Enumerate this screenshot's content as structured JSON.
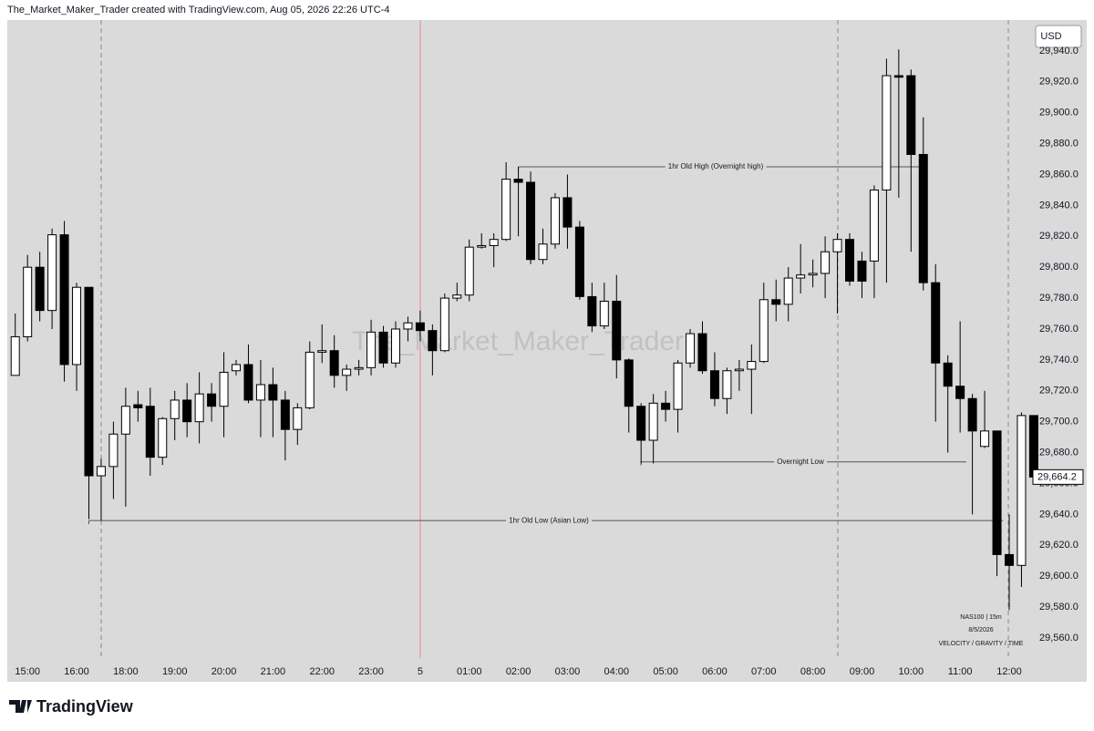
{
  "chart_data": {
    "type": "candlestick",
    "header": "The_Market_Maker_Trader created with TradingView.com, Aug 05, 2026 22:26 UTC-4",
    "watermark": "The_Market_Maker_Trader",
    "currency": "USD",
    "brand": "TradingView",
    "symbol_info": [
      "NAS100  |  15m",
      "8/5/2026",
      "VELOCITY / GRAVITY / TIME"
    ],
    "categories": [
      null,
      "15:00",
      null,
      null,
      null,
      "16:00",
      null,
      null,
      null,
      "18:00",
      null,
      null,
      null,
      "19:00",
      null,
      null,
      null,
      "20:00",
      null,
      null,
      null,
      "21:00",
      null,
      null,
      null,
      "22:00",
      null,
      null,
      null,
      "23:00",
      null,
      null,
      null,
      "5",
      null,
      null,
      null,
      "01:00",
      null,
      null,
      null,
      "02:00",
      null,
      null,
      null,
      "03:00",
      null,
      null,
      null,
      "04:00",
      null,
      null,
      null,
      "05:00",
      null,
      null,
      null,
      "06:00",
      null,
      null,
      null,
      "07:00",
      null,
      null,
      null,
      "08:00",
      null,
      null,
      null,
      "09:00",
      null,
      null,
      null,
      "10:00",
      null,
      null,
      null,
      "11:00",
      null,
      null,
      null,
      "12:00",
      null,
      null
    ],
    "open": [
      29730,
      29755,
      29800,
      29772,
      29821,
      29737,
      29787,
      29665,
      29671,
      29692,
      29711,
      29710,
      29677,
      29702,
      29714,
      29700,
      29718,
      29710,
      29733,
      29737,
      29714,
      29724,
      29714,
      29695,
      29709,
      29745,
      29746,
      29730,
      29734,
      29735,
      29758,
      29738,
      29760,
      29764,
      29759,
      29746,
      29780,
      29782,
      29813,
      29814,
      29818,
      29857,
      29855,
      29805,
      29815,
      29845,
      29826,
      29781,
      29762,
      29778,
      29740,
      29710,
      29688,
      29712,
      29708,
      29738,
      29757,
      29733,
      29715,
      29733,
      29734,
      29739,
      29779,
      29776,
      29793,
      29795,
      29796,
      29810,
      29818,
      29804,
      29804,
      29850,
      29924,
      29924,
      29873,
      29790,
      29738,
      29723,
      29715,
      29684,
      29694,
      29614,
      29607,
      29704
    ],
    "high": [
      29770,
      29808,
      29810,
      29825,
      29830,
      29790,
      29787,
      29676,
      29700,
      29722,
      29720,
      29722,
      29703,
      29720,
      29725,
      29732,
      29725,
      29745,
      29740,
      29750,
      29740,
      29735,
      29720,
      29712,
      29752,
      29763,
      29756,
      29737,
      29740,
      29766,
      29762,
      29765,
      29768,
      29772,
      29763,
      29783,
      29790,
      29818,
      29822,
      29822,
      29868,
      29865,
      29862,
      29825,
      29848,
      29860,
      29830,
      29790,
      29790,
      29795,
      29741,
      29712,
      29718,
      29720,
      29740,
      29760,
      29765,
      29745,
      29735,
      29740,
      29750,
      29790,
      29792,
      29800,
      29815,
      29805,
      29820,
      29822,
      29822,
      29810,
      29853,
      29935,
      29941,
      29928,
      29897,
      29802,
      29743,
      29765,
      29718,
      29720,
      29694,
      29640,
      29706,
      29704
    ],
    "low": [
      29730,
      29752,
      29765,
      29760,
      29726,
      29720,
      29637,
      29636,
      29650,
      29645,
      29700,
      29665,
      29672,
      29688,
      29690,
      29686,
      29700,
      29690,
      29730,
      29712,
      29690,
      29690,
      29675,
      29685,
      29708,
      29738,
      29722,
      29720,
      29730,
      29730,
      29735,
      29735,
      29752,
      29752,
      29730,
      29745,
      29778,
      29778,
      29812,
      29800,
      29817,
      29820,
      29802,
      29802,
      29812,
      29812,
      29779,
      29758,
      29760,
      29728,
      29693,
      29673,
      29673,
      29700,
      29693,
      29735,
      29731,
      29710,
      29705,
      29720,
      29705,
      29738,
      29765,
      29765,
      29783,
      29787,
      29780,
      29770,
      29788,
      29780,
      29780,
      29790,
      29845,
      29810,
      29785,
      29700,
      29680,
      29693,
      29640,
      29683,
      29600,
      29578,
      29593,
      29660
    ],
    "close": [
      29755,
      29800,
      29772,
      29821,
      29737,
      29787,
      29665,
      29671,
      29692,
      29710,
      29709,
      29677,
      29702,
      29714,
      29700,
      29718,
      29710,
      29732,
      29737,
      29714,
      29724,
      29714,
      29695,
      29709,
      29745,
      29746,
      29730,
      29734,
      29735,
      29758,
      29738,
      29760,
      29764,
      29759,
      29746,
      29780,
      29782,
      29813,
      29814,
      29818,
      29857,
      29855,
      29805,
      29815,
      29845,
      29826,
      29781,
      29762,
      29778,
      29740,
      29710,
      29688,
      29712,
      29708,
      29738,
      29757,
      29733,
      29715,
      29733,
      29734,
      29739,
      29779,
      29776,
      29793,
      29795,
      29796,
      29810,
      29818,
      29791,
      29791,
      29850,
      29924,
      29923,
      29873,
      29790,
      29738,
      29723,
      29715,
      29694,
      29694,
      29614,
      29607,
      29704,
      29664.2
    ],
    "last_value_label": "29,664.2",
    "up_color": "#ffffff",
    "down_color": "#000000",
    "ylim": [
      29547,
      29960
    ],
    "yticks": [
      {
        "value": 29560,
        "label": "29,560.0"
      },
      {
        "value": 29580,
        "label": "29,580.0"
      },
      {
        "value": 29600,
        "label": "29,600.0"
      },
      {
        "value": 29620,
        "label": "29,620.0"
      },
      {
        "value": 29640,
        "label": "29,640.0"
      },
      {
        "value": 29660,
        "label": "29,660.0"
      },
      {
        "value": 29680,
        "label": "29,680.0"
      },
      {
        "value": 29700,
        "label": "29,700.0"
      },
      {
        "value": 29720,
        "label": "29,720.0"
      },
      {
        "value": 29740,
        "label": "29,740.0"
      },
      {
        "value": 29760,
        "label": "29,760.0"
      },
      {
        "value": 29780,
        "label": "29,780.0"
      },
      {
        "value": 29800,
        "label": "29,800.0"
      },
      {
        "value": 29820,
        "label": "29,820.0"
      },
      {
        "value": 29840,
        "label": "29,840.0"
      },
      {
        "value": 29860,
        "label": "29,860.0"
      },
      {
        "value": 29880,
        "label": "29,880.0"
      },
      {
        "value": 29900,
        "label": "29,900.0"
      },
      {
        "value": 29920,
        "label": "29,920.0"
      },
      {
        "value": 29940,
        "label": "29,940.0"
      }
    ],
    "grid": false,
    "annotations": [
      {
        "text": "1hr Old  High (Overnight high)",
        "value": 29865
      },
      {
        "text": "Overnight Low",
        "value": 29674
      },
      {
        "text": "1hr Old  Low (Asian Low)",
        "value": 29636
      }
    ]
  }
}
